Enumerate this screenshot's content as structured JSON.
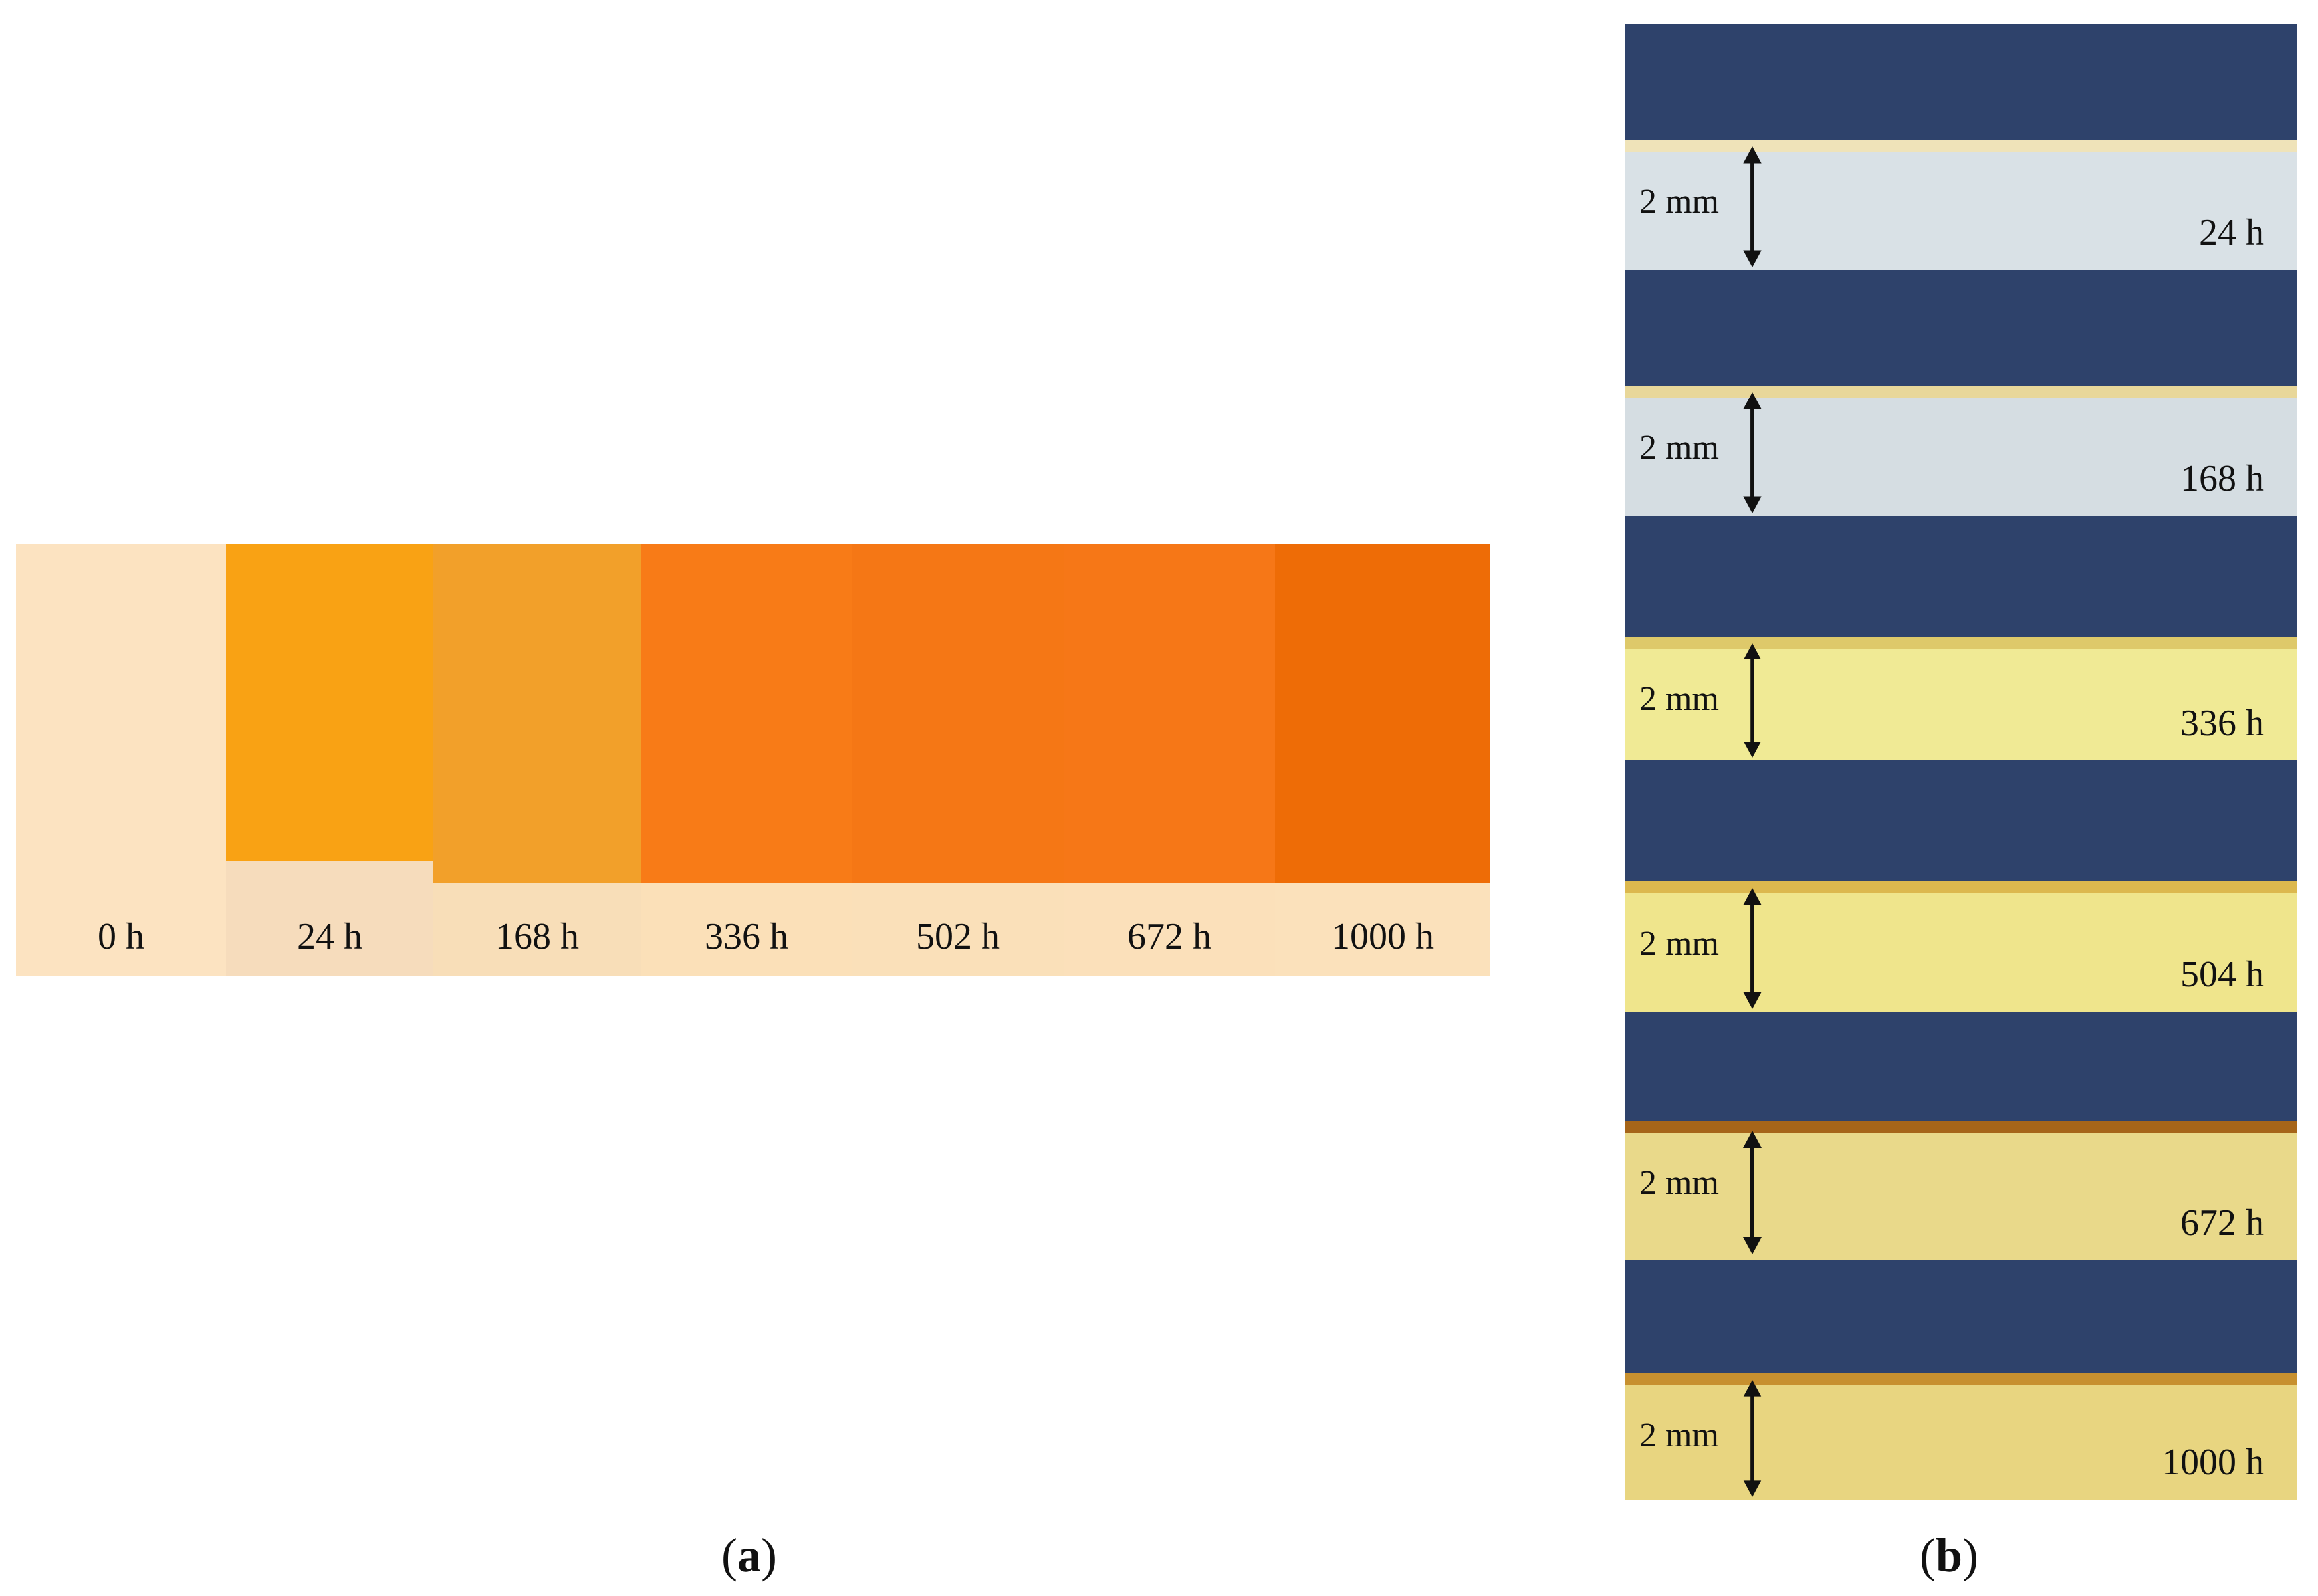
{
  "panel_a": {
    "caption": "a",
    "samples": [
      {
        "label": "0 h",
        "color": "#fce3c1",
        "base_color": "#fce3c1"
      },
      {
        "label": "24 h",
        "color": "#f9a214",
        "base_color": "#f6dcbc"
      },
      {
        "label": "168 h",
        "color": "#f2a02a",
        "base_color": "#f8deb8"
      },
      {
        "label": "336 h",
        "color": "#f87b17",
        "base_color": "#fbe0b8"
      },
      {
        "label": "502 h",
        "color": "#f57715",
        "base_color": "#fae0b9"
      },
      {
        "label": "672 h",
        "color": "#f67717",
        "base_color": "#fbe0ba"
      },
      {
        "label": "1000 h",
        "color": "#ee6c06",
        "base_color": "#fbe1bb"
      }
    ]
  },
  "panel_b": {
    "caption": "b",
    "background": "#2e426b",
    "strips": [
      {
        "time": "24 h",
        "scale": "2 mm",
        "color": "#d9e1e6",
        "edge": "#efe3b9"
      },
      {
        "time": "168 h",
        "scale": "2 mm",
        "color": "#d5dde2",
        "edge": "#e8d79a"
      },
      {
        "time": "336 h",
        "scale": "2 mm",
        "color": "#f0ea95",
        "edge": "#dec96a"
      },
      {
        "time": "504 h",
        "scale": "2 mm",
        "color": "#efe58c",
        "edge": "#dcb84e"
      },
      {
        "time": "672 h",
        "scale": "2 mm",
        "color": "#e9d98a",
        "edge": "#a66519"
      },
      {
        "time": "1000 h",
        "scale": "2 mm",
        "color": "#e8d580",
        "edge": "#c7902f"
      }
    ]
  }
}
